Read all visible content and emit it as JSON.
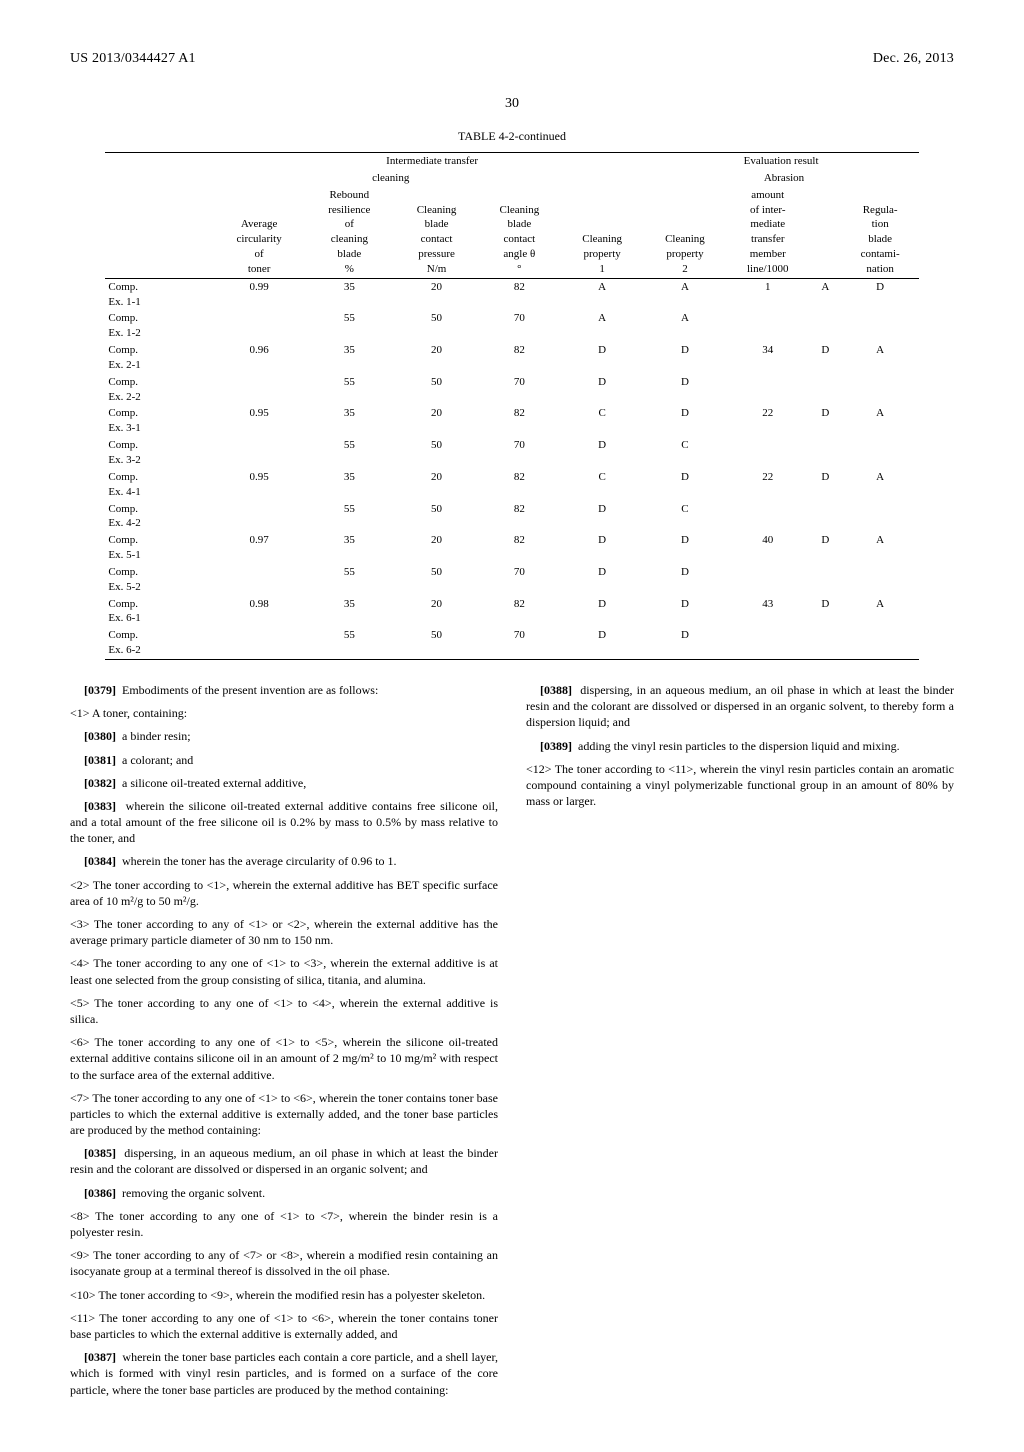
{
  "header": {
    "left": "US 2013/0344427 A1",
    "right": "Dec. 26, 2013"
  },
  "pagenum": "30",
  "table": {
    "title": "TABLE 4-2-continued",
    "group_headers": {
      "intermediate": "Intermediate transfer",
      "cleaning": "cleaning",
      "evaluation": "Evaluation result",
      "abrasion": "Abrasion"
    },
    "col_headers": {
      "rowlabel": "",
      "avg_circ": "Average circularity of toner",
      "rebound": "Rebound resilience of cleaning blade %",
      "pressure": "Cleaning blade contact pressure N/m",
      "angle": "Cleaning blade contact angle θ °",
      "clean1": "Cleaning property 1",
      "clean2": "Cleaning property 2",
      "abr_amt": "amount of inter- mediate transfer member line/1000",
      "abr_grade": "",
      "regulation": "Regula- tion blade contami- nation"
    },
    "rows": [
      {
        "label": "Comp. Ex. 1-1",
        "circ": "0.99",
        "rebound": "35",
        "pressure": "20",
        "angle": "82",
        "c1": "A",
        "c2": "A",
        "amt": "1",
        "grade": "A",
        "reg": "D"
      },
      {
        "label": "Comp. Ex. 1-2",
        "circ": "",
        "rebound": "55",
        "pressure": "50",
        "angle": "70",
        "c1": "A",
        "c2": "A",
        "amt": "",
        "grade": "",
        "reg": ""
      },
      {
        "label": "Comp. Ex. 2-1",
        "circ": "0.96",
        "rebound": "35",
        "pressure": "20",
        "angle": "82",
        "c1": "D",
        "c2": "D",
        "amt": "34",
        "grade": "D",
        "reg": "A"
      },
      {
        "label": "Comp. Ex. 2-2",
        "circ": "",
        "rebound": "55",
        "pressure": "50",
        "angle": "70",
        "c1": "D",
        "c2": "D",
        "amt": "",
        "grade": "",
        "reg": ""
      },
      {
        "label": "Comp. Ex. 3-1",
        "circ": "0.95",
        "rebound": "35",
        "pressure": "20",
        "angle": "82",
        "c1": "C",
        "c2": "D",
        "amt": "22",
        "grade": "D",
        "reg": "A"
      },
      {
        "label": "Comp. Ex. 3-2",
        "circ": "",
        "rebound": "55",
        "pressure": "50",
        "angle": "70",
        "c1": "D",
        "c2": "C",
        "amt": "",
        "grade": "",
        "reg": ""
      },
      {
        "label": "Comp. Ex. 4-1",
        "circ": "0.95",
        "rebound": "35",
        "pressure": "20",
        "angle": "82",
        "c1": "C",
        "c2": "D",
        "amt": "22",
        "grade": "D",
        "reg": "A"
      },
      {
        "label": "Comp. Ex. 4-2",
        "circ": "",
        "rebound": "55",
        "pressure": "50",
        "angle": "82",
        "c1": "D",
        "c2": "C",
        "amt": "",
        "grade": "",
        "reg": ""
      },
      {
        "label": "Comp. Ex. 5-1",
        "circ": "0.97",
        "rebound": "35",
        "pressure": "20",
        "angle": "82",
        "c1": "D",
        "c2": "D",
        "amt": "40",
        "grade": "D",
        "reg": "A"
      },
      {
        "label": "Comp. Ex. 5-2",
        "circ": "",
        "rebound": "55",
        "pressure": "50",
        "angle": "70",
        "c1": "D",
        "c2": "D",
        "amt": "",
        "grade": "",
        "reg": ""
      },
      {
        "label": "Comp. Ex. 6-1",
        "circ": "0.98",
        "rebound": "35",
        "pressure": "20",
        "angle": "82",
        "c1": "D",
        "c2": "D",
        "amt": "43",
        "grade": "D",
        "reg": "A"
      },
      {
        "label": "Comp. Ex. 6-2",
        "circ": "",
        "rebound": "55",
        "pressure": "50",
        "angle": "70",
        "c1": "D",
        "c2": "D",
        "amt": "",
        "grade": "",
        "reg": ""
      }
    ]
  },
  "text": {
    "p0379_num": "[0379]",
    "p0379": "Embodiments of the present invention are as follows:",
    "c1": "<1> A toner, containing:",
    "p0380_num": "[0380]",
    "p0380": "a binder resin;",
    "p0381_num": "[0381]",
    "p0381": "a colorant; and",
    "p0382_num": "[0382]",
    "p0382": "a silicone oil-treated external additive,",
    "p0383_num": "[0383]",
    "p0383": "wherein the silicone oil-treated external additive contains free silicone oil, and a total amount of the free silicone oil is 0.2% by mass to 0.5% by mass relative to the toner, and",
    "p0384_num": "[0384]",
    "p0384": "wherein the toner has the average circularity of 0.96 to 1.",
    "c2": "<2> The toner according to <1>, wherein the external additive has BET specific surface area of 10 m²/g to 50 m²/g.",
    "c3": "<3> The toner according to any of <1> or <2>, wherein the external additive has the average primary particle diameter of 30 nm to 150 nm.",
    "c4": "<4> The toner according to any one of <1> to <3>, wherein the external additive is at least one selected from the group consisting of silica, titania, and alumina.",
    "c5": "<5> The toner according to any one of <1> to <4>, wherein the external additive is silica.",
    "c6": "<6> The toner according to any one of <1> to <5>, wherein the silicone oil-treated external additive contains silicone oil in an amount of 2 mg/m² to 10 mg/m² with respect to the surface area of the external additive.",
    "c7": "<7> The toner according to any one of <1> to <6>, wherein the toner contains toner base particles to which the external additive is externally added, and the toner base particles are produced by the method containing:",
    "p0385_num": "[0385]",
    "p0385": "dispersing, in an aqueous medium, an oil phase in which at least the binder resin and the colorant are dissolved or dispersed in an organic solvent; and",
    "p0386_num": "[0386]",
    "p0386": "removing the organic solvent.",
    "c8": "<8> The toner according to any one of <1> to <7>, wherein the binder resin is a polyester resin.",
    "c9": "<9> The toner according to any of <7> or <8>, wherein a modified resin containing an isocyanate group at a terminal thereof is dissolved in the oil phase.",
    "c10": "<10> The toner according to <9>, wherein the modified resin has a polyester skeleton.",
    "c11": "<11> The toner according to any one of <1> to <6>, wherein the toner contains toner base particles to which the external additive is externally added, and",
    "p0387_num": "[0387]",
    "p0387": "wherein the toner base particles each contain a core particle, and a shell layer, which is formed with vinyl resin particles, and is formed on a surface of the core particle, where the toner base particles are produced by the method containing:",
    "p0388_num": "[0388]",
    "p0388": "dispersing, in an aqueous medium, an oil phase in which at least the binder resin and the colorant are dissolved or dispersed in an organic solvent, to thereby form a dispersion liquid; and",
    "p0389_num": "[0389]",
    "p0389": "adding the vinyl resin particles to the dispersion liquid and mixing.",
    "c12": "<12> The toner according to <11>, wherein the vinyl resin particles contain an aromatic compound containing a vinyl polymerizable functional group in an amount of 80% by mass or larger."
  }
}
